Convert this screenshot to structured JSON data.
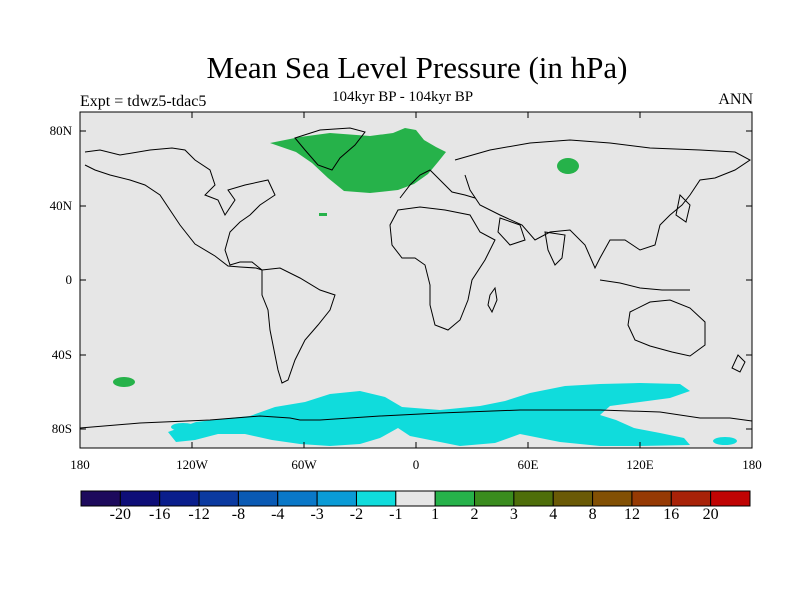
{
  "title": "Mean Sea Level Pressure (in hPa)",
  "subtitle": "104kyr BP - 104kyr BP",
  "left_label": "Expt = tdwz5-tdac5",
  "right_label": "ANN",
  "lat_labels": [
    "80N",
    "40N",
    "0",
    "40S",
    "80S"
  ],
  "lon_labels": [
    "180",
    "120W",
    "60W",
    "0",
    "60E",
    "120E",
    "180"
  ],
  "colorbar": {
    "colors": [
      "#1d0a5c",
      "#0e0e78",
      "#0a1e8c",
      "#0b3aa0",
      "#0a5ab4",
      "#0a78c8",
      "#0a9bd6",
      "#10dcdc",
      "#e6e6e6",
      "#26b24a",
      "#3a8c1e",
      "#4e6e0a",
      "#6a5a06",
      "#825004",
      "#963a04",
      "#a82208",
      "#c00404"
    ],
    "labels": [
      "-20",
      "-16",
      "-12",
      "-8",
      "-4",
      "-3",
      "-2",
      "-1",
      "1",
      "2",
      "3",
      "4",
      "8",
      "12",
      "16",
      "20"
    ]
  },
  "colors": {
    "background": "#e6e6e6",
    "positive": "#26b24a",
    "negative": "#10dcdc"
  }
}
